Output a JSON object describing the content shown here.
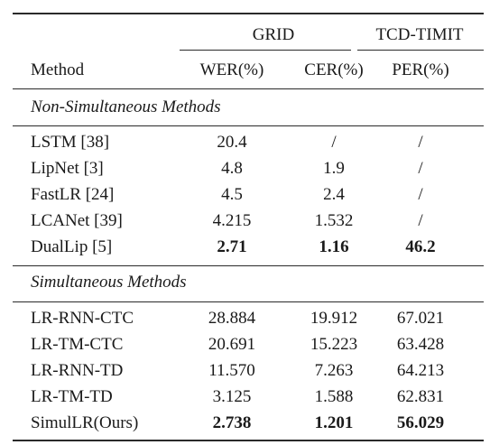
{
  "table": {
    "group_headers": {
      "grid": "GRID",
      "tcd": "TCD-TIMIT"
    },
    "column_headers": {
      "method": "Method",
      "wer": "WER(%)",
      "cer": "CER(%)",
      "per": "PER(%)"
    },
    "sections": [
      {
        "title": "Non-Simultaneous Methods",
        "rows": [
          {
            "method": "LSTM [38]",
            "wer": "20.4",
            "cer": "/",
            "per": "/"
          },
          {
            "method": "LipNet [3]",
            "wer": "4.8",
            "cer": "1.9",
            "per": "/"
          },
          {
            "method": "FastLR [24]",
            "wer": "4.5",
            "cer": "2.4",
            "per": "/"
          },
          {
            "method": "LCANet [39]",
            "wer": "4.215",
            "cer": "1.532",
            "per": "/"
          },
          {
            "method": "DualLip [5]",
            "wer": "2.71",
            "cer": "1.16",
            "per": "46.2"
          }
        ]
      },
      {
        "title": "Simultaneous Methods",
        "rows": [
          {
            "method": "LR-RNN-CTC",
            "wer": "28.884",
            "cer": "19.912",
            "per": "67.021"
          },
          {
            "method": "LR-TM-CTC",
            "wer": "20.691",
            "cer": "15.223",
            "per": "63.428"
          },
          {
            "method": "LR-RNN-TD",
            "wer": "11.570",
            "cer": "7.263",
            "per": "64.213"
          },
          {
            "method": "LR-TM-TD",
            "wer": "3.125",
            "cer": "1.588",
            "per": "62.831"
          },
          {
            "method": "SimulLR(Ours)",
            "wer": "2.738",
            "cer": "1.201",
            "per": "56.029"
          }
        ]
      }
    ]
  }
}
